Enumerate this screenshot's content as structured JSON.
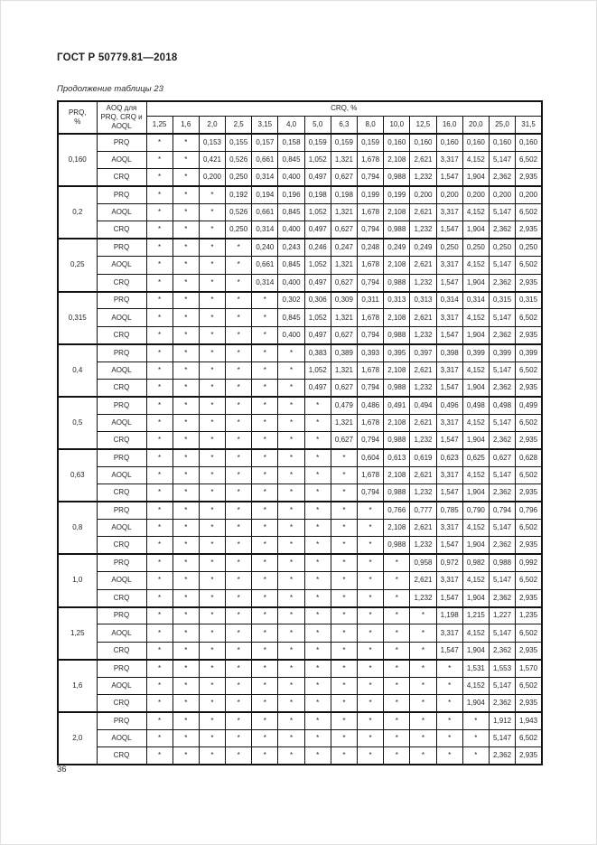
{
  "page": {
    "standard_title": "ГОСТ Р 50779.81—2018",
    "table_caption": "Продолжение таблицы 23",
    "page_number": "36"
  },
  "table": {
    "corner_header": "PRQ,\n%",
    "aoq_header": "AOQ для PRQ, CRQ и AOQL",
    "crq_group_header": "CRQ, %",
    "crq_columns": [
      "1,25",
      "1,6",
      "2,0",
      "2,5",
      "3,15",
      "4,0",
      "5,0",
      "6,3",
      "8,0",
      "10,0",
      "12,5",
      "16,0",
      "20,0",
      "25,0",
      "31,5"
    ],
    "groups": [
      {
        "prq": "0,160",
        "rows": [
          {
            "label": "PRQ",
            "values": [
              "*",
              "*",
              "0,153",
              "0,155",
              "0,157",
              "0,158",
              "0,159",
              "0,159",
              "0,159",
              "0,160",
              "0,160",
              "0,160",
              "0,160",
              "0,160",
              "0,160"
            ]
          },
          {
            "label": "AOQL",
            "values": [
              "*",
              "*",
              "0,421",
              "0,526",
              "0,661",
              "0,845",
              "1,052",
              "1,321",
              "1,678",
              "2,108",
              "2,621",
              "3,317",
              "4,152",
              "5,147",
              "6,502"
            ]
          },
          {
            "label": "CRQ",
            "values": [
              "*",
              "*",
              "0,200",
              "0,250",
              "0,314",
              "0,400",
              "0,497",
              "0,627",
              "0,794",
              "0,988",
              "1,232",
              "1,547",
              "1,904",
              "2,362",
              "2,935"
            ]
          }
        ]
      },
      {
        "prq": "0,2",
        "rows": [
          {
            "label": "PRQ",
            "values": [
              "*",
              "*",
              "*",
              "0,192",
              "0,194",
              "0,196",
              "0,198",
              "0,198",
              "0,199",
              "0,199",
              "0,200",
              "0,200",
              "0,200",
              "0,200",
              "0,200"
            ]
          },
          {
            "label": "AOQL",
            "values": [
              "*",
              "*",
              "*",
              "0,526",
              "0,661",
              "0,845",
              "1,052",
              "1,321",
              "1,678",
              "2,108",
              "2,621",
              "3,317",
              "4,152",
              "5,147",
              "6,502"
            ]
          },
          {
            "label": "CRQ",
            "values": [
              "*",
              "*",
              "*",
              "0,250",
              "0,314",
              "0,400",
              "0,497",
              "0,627",
              "0,794",
              "0,988",
              "1,232",
              "1,547",
              "1,904",
              "2,362",
              "2,935"
            ]
          }
        ]
      },
      {
        "prq": "0,25",
        "rows": [
          {
            "label": "PRQ",
            "values": [
              "*",
              "*",
              "*",
              "*",
              "0,240",
              "0,243",
              "0,246",
              "0,247",
              "0,248",
              "0,249",
              "0,249",
              "0,250",
              "0,250",
              "0,250",
              "0,250"
            ]
          },
          {
            "label": "AOQL",
            "values": [
              "*",
              "*",
              "*",
              "*",
              "0,661",
              "0,845",
              "1,052",
              "1,321",
              "1,678",
              "2,108",
              "2,621",
              "3,317",
              "4,152",
              "5,147",
              "6,502"
            ]
          },
          {
            "label": "CRQ",
            "values": [
              "*",
              "*",
              "*",
              "*",
              "0,314",
              "0,400",
              "0,497",
              "0,627",
              "0,794",
              "0,988",
              "1,232",
              "1,547",
              "1,904",
              "2,362",
              "2,935"
            ]
          }
        ]
      },
      {
        "prq": "0,315",
        "rows": [
          {
            "label": "PRQ",
            "values": [
              "*",
              "*",
              "*",
              "*",
              "*",
              "0,302",
              "0,306",
              "0,309",
              "0,311",
              "0,313",
              "0,313",
              "0,314",
              "0,314",
              "0,315",
              "0,315"
            ]
          },
          {
            "label": "AOQL",
            "values": [
              "*",
              "*",
              "*",
              "*",
              "*",
              "0,845",
              "1,052",
              "1,321",
              "1,678",
              "2,108",
              "2,621",
              "3,317",
              "4,152",
              "5,147",
              "6,502"
            ]
          },
          {
            "label": "CRQ",
            "values": [
              "*",
              "*",
              "*",
              "*",
              "*",
              "0,400",
              "0,497",
              "0,627",
              "0,794",
              "0,988",
              "1,232",
              "1,547",
              "1,904",
              "2,362",
              "2,935"
            ]
          }
        ]
      },
      {
        "prq": "0,4",
        "rows": [
          {
            "label": "PRQ",
            "values": [
              "*",
              "*",
              "*",
              "*",
              "*",
              "*",
              "0,383",
              "0,389",
              "0,393",
              "0,395",
              "0,397",
              "0,398",
              "0,399",
              "0,399",
              "0,399"
            ]
          },
          {
            "label": "AOQL",
            "values": [
              "*",
              "*",
              "*",
              "*",
              "*",
              "*",
              "1,052",
              "1,321",
              "1,678",
              "2,108",
              "2,621",
              "3,317",
              "4,152",
              "5,147",
              "6,502"
            ]
          },
          {
            "label": "CRQ",
            "values": [
              "*",
              "*",
              "*",
              "*",
              "*",
              "*",
              "0,497",
              "0,627",
              "0,794",
              "0,988",
              "1,232",
              "1,547",
              "1,904",
              "2,362",
              "2,935"
            ]
          }
        ]
      },
      {
        "prq": "0,5",
        "rows": [
          {
            "label": "PRQ",
            "values": [
              "*",
              "*",
              "*",
              "*",
              "*",
              "*",
              "*",
              "0,479",
              "0,486",
              "0,491",
              "0,494",
              "0,496",
              "0,498",
              "0,498",
              "0,499"
            ]
          },
          {
            "label": "AOQL",
            "values": [
              "*",
              "*",
              "*",
              "*",
              "*",
              "*",
              "*",
              "1,321",
              "1,678",
              "2,108",
              "2,621",
              "3,317",
              "4,152",
              "5,147",
              "6,502"
            ]
          },
          {
            "label": "CRQ",
            "values": [
              "*",
              "*",
              "*",
              "*",
              "*",
              "*",
              "*",
              "0,627",
              "0,794",
              "0,988",
              "1,232",
              "1,547",
              "1,904",
              "2,362",
              "2,935"
            ]
          }
        ]
      },
      {
        "prq": "0,63",
        "rows": [
          {
            "label": "PRQ",
            "values": [
              "*",
              "*",
              "*",
              "*",
              "*",
              "*",
              "*",
              "*",
              "0,604",
              "0,613",
              "0,619",
              "0,623",
              "0,625",
              "0,627",
              "0,628"
            ]
          },
          {
            "label": "AOQL",
            "values": [
              "*",
              "*",
              "*",
              "*",
              "*",
              "*",
              "*",
              "*",
              "1,678",
              "2,108",
              "2,621",
              "3,317",
              "4,152",
              "5,147",
              "6,502"
            ]
          },
          {
            "label": "CRQ",
            "values": [
              "*",
              "*",
              "*",
              "*",
              "*",
              "*",
              "*",
              "*",
              "0,794",
              "0,988",
              "1,232",
              "1,547",
              "1,904",
              "2,362",
              "2,935"
            ]
          }
        ]
      },
      {
        "prq": "0,8",
        "rows": [
          {
            "label": "PRQ",
            "values": [
              "*",
              "*",
              "*",
              "*",
              "*",
              "*",
              "*",
              "*",
              "*",
              "0,766",
              "0,777",
              "0,785",
              "0,790",
              "0,794",
              "0,796"
            ]
          },
          {
            "label": "AOQL",
            "values": [
              "*",
              "*",
              "*",
              "*",
              "*",
              "*",
              "*",
              "*",
              "*",
              "2,108",
              "2,621",
              "3,317",
              "4,152",
              "5,147",
              "6,502"
            ]
          },
          {
            "label": "CRQ",
            "values": [
              "*",
              "*",
              "*",
              "*",
              "*",
              "*",
              "*",
              "*",
              "*",
              "0,988",
              "1,232",
              "1,547",
              "1,904",
              "2,362",
              "2,935"
            ]
          }
        ]
      },
      {
        "prq": "1,0",
        "rows": [
          {
            "label": "PRQ",
            "values": [
              "*",
              "*",
              "*",
              "*",
              "*",
              "*",
              "*",
              "*",
              "*",
              "*",
              "0,958",
              "0,972",
              "0,982",
              "0,988",
              "0,992"
            ]
          },
          {
            "label": "AOQL",
            "values": [
              "*",
              "*",
              "*",
              "*",
              "*",
              "*",
              "*",
              "*",
              "*",
              "*",
              "2,621",
              "3,317",
              "4,152",
              "5,147",
              "6,502"
            ]
          },
          {
            "label": "CRQ",
            "values": [
              "*",
              "*",
              "*",
              "*",
              "*",
              "*",
              "*",
              "*",
              "*",
              "*",
              "1,232",
              "1,547",
              "1,904",
              "2,362",
              "2,935"
            ]
          }
        ]
      },
      {
        "prq": "1,25",
        "rows": [
          {
            "label": "PRQ",
            "values": [
              "*",
              "*",
              "*",
              "*",
              "*",
              "*",
              "*",
              "*",
              "*",
              "*",
              "*",
              "1,198",
              "1,215",
              "1,227",
              "1,235"
            ]
          },
          {
            "label": "AOQL",
            "values": [
              "*",
              "*",
              "*",
              "*",
              "*",
              "*",
              "*",
              "*",
              "*",
              "*",
              "*",
              "3,317",
              "4,152",
              "5,147",
              "6,502"
            ]
          },
          {
            "label": "CRQ",
            "values": [
              "*",
              "*",
              "*",
              "*",
              "*",
              "*",
              "*",
              "*",
              "*",
              "*",
              "*",
              "1,547",
              "1,904",
              "2,362",
              "2,935"
            ]
          }
        ]
      },
      {
        "prq": "1,6",
        "rows": [
          {
            "label": "PRQ",
            "values": [
              "*",
              "*",
              "*",
              "*",
              "*",
              "*",
              "*",
              "*",
              "*",
              "*",
              "*",
              "*",
              "1,531",
              "1,553",
              "1,570"
            ]
          },
          {
            "label": "AOQL",
            "values": [
              "*",
              "*",
              "*",
              "*",
              "*",
              "*",
              "*",
              "*",
              "*",
              "*",
              "*",
              "*",
              "4,152",
              "5,147",
              "6,502"
            ]
          },
          {
            "label": "CRQ",
            "values": [
              "*",
              "*",
              "*",
              "*",
              "*",
              "*",
              "*",
              "*",
              "*",
              "*",
              "*",
              "*",
              "1,904",
              "2,362",
              "2,935"
            ]
          }
        ]
      },
      {
        "prq": "2,0",
        "rows": [
          {
            "label": "PRQ",
            "values": [
              "*",
              "*",
              "*",
              "*",
              "*",
              "*",
              "*",
              "*",
              "*",
              "*",
              "*",
              "*",
              "*",
              "1,912",
              "1,943"
            ]
          },
          {
            "label": "AOQL",
            "values": [
              "*",
              "*",
              "*",
              "*",
              "*",
              "*",
              "*",
              "*",
              "*",
              "*",
              "*",
              "*",
              "*",
              "5,147",
              "6,502"
            ]
          },
          {
            "label": "CRQ",
            "values": [
              "*",
              "*",
              "*",
              "*",
              "*",
              "*",
              "*",
              "*",
              "*",
              "*",
              "*",
              "*",
              "*",
              "2,362",
              "2,935"
            ]
          }
        ]
      }
    ]
  }
}
